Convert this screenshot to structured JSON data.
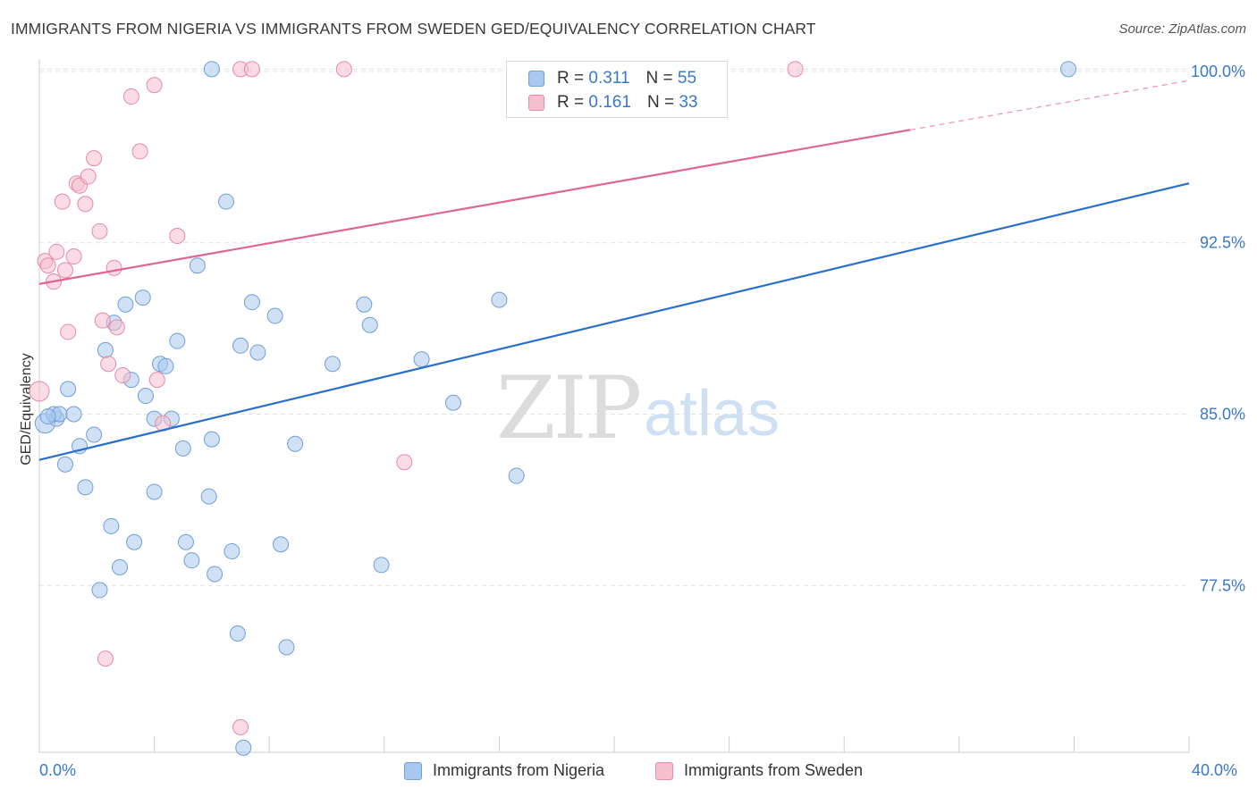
{
  "header": {
    "title": "IMMIGRANTS FROM NIGERIA VS IMMIGRANTS FROM SWEDEN GED/EQUIVALENCY CORRELATION CHART",
    "source": "Source: ZipAtlas.com"
  },
  "watermark": {
    "zip": "ZIP",
    "atlas": "atlas"
  },
  "legend_top": {
    "rows": [
      {
        "r_label": "R = ",
        "r_value": "0.311",
        "n_label": "N = ",
        "n_value": "55"
      },
      {
        "r_label": "R = ",
        "r_value": "0.161",
        "n_label": "N = ",
        "n_value": "33"
      }
    ]
  },
  "legend_bottom": {
    "items": [
      "Immigrants from Nigeria",
      "Immigrants from Sweden"
    ]
  },
  "colors": {
    "nigeria_fill": "#a9c8ef",
    "nigeria_stroke": "#6f9fd8",
    "nigeria_line": "#2a6fcb",
    "sweden_fill": "#f7bfd0",
    "sweden_stroke": "#e58aa8",
    "sweden_line": "#e0668f",
    "axis_label": "#3a78c9",
    "grid": "#e2e2e2"
  },
  "chart_data": {
    "type": "scatter",
    "title": "IMMIGRANTS FROM NIGERIA VS IMMIGRANTS FROM SWEDEN GED/EQUIVALENCY CORRELATION CHART",
    "xlabel": "",
    "ylabel": "GED/Equivalency",
    "xlim": [
      0,
      40
    ],
    "ylim": [
      70.2,
      100.7
    ],
    "x_tick_labels": [
      "0.0%",
      "40.0%"
    ],
    "y_ticks": [
      77.5,
      85.0,
      92.5,
      100.0
    ],
    "y_tick_labels": [
      "77.5%",
      "85.0%",
      "92.5%",
      "100.0%"
    ],
    "grid": true,
    "legend": "top-center",
    "series": [
      {
        "name": "Immigrants from Nigeria",
        "R": 0.311,
        "N": 55,
        "trend": {
          "x0": 0,
          "y0": 83.0,
          "x1": 40,
          "y1": 95.1,
          "dashed_from": null
        },
        "points": [
          [
            0.2,
            84.6
          ],
          [
            0.6,
            84.8
          ],
          [
            0.5,
            85.0
          ],
          [
            0.7,
            85.0
          ],
          [
            0.9,
            82.8
          ],
          [
            1.0,
            86.1
          ],
          [
            1.2,
            85.0
          ],
          [
            1.4,
            83.6
          ],
          [
            1.6,
            81.8
          ],
          [
            1.9,
            84.1
          ],
          [
            2.1,
            77.3
          ],
          [
            2.3,
            87.8
          ],
          [
            2.6,
            89.0
          ],
          [
            2.5,
            80.1
          ],
          [
            2.8,
            78.3
          ],
          [
            3.0,
            89.8
          ],
          [
            3.2,
            86.5
          ],
          [
            3.3,
            79.4
          ],
          [
            3.6,
            90.1
          ],
          [
            3.7,
            85.8
          ],
          [
            4.0,
            84.8
          ],
          [
            4.0,
            81.6
          ],
          [
            4.2,
            87.2
          ],
          [
            4.4,
            87.1
          ],
          [
            4.6,
            84.8
          ],
          [
            4.8,
            88.2
          ],
          [
            5.0,
            83.5
          ],
          [
            5.1,
            79.4
          ],
          [
            5.3,
            78.6
          ],
          [
            5.5,
            91.5
          ],
          [
            5.9,
            81.4
          ],
          [
            6.0,
            83.9
          ],
          [
            6.1,
            78.0
          ],
          [
            6.0,
            100.1
          ],
          [
            6.5,
            94.3
          ],
          [
            6.7,
            79.0
          ],
          [
            6.9,
            75.4
          ],
          [
            7.0,
            88.0
          ],
          [
            7.1,
            70.4
          ],
          [
            7.4,
            89.9
          ],
          [
            7.6,
            87.7
          ],
          [
            8.2,
            89.3
          ],
          [
            8.4,
            79.3
          ],
          [
            8.6,
            74.8
          ],
          [
            8.9,
            83.7
          ],
          [
            10.2,
            87.2
          ],
          [
            11.3,
            89.8
          ],
          [
            11.5,
            88.9
          ],
          [
            11.9,
            78.4
          ],
          [
            13.3,
            87.4
          ],
          [
            14.4,
            85.5
          ],
          [
            16.0,
            90.0
          ],
          [
            16.6,
            82.3
          ],
          [
            35.8,
            100.1
          ],
          [
            0.3,
            84.9
          ]
        ]
      },
      {
        "name": "Immigrants from Sweden",
        "R": 0.161,
        "N": 33,
        "trend": {
          "x0": 0,
          "y0": 90.7,
          "x1": 40,
          "y1": 99.6,
          "dashed_from": 30.3
        },
        "points": [
          [
            0.0,
            86.0
          ],
          [
            0.2,
            91.7
          ],
          [
            0.3,
            91.5
          ],
          [
            0.5,
            90.8
          ],
          [
            0.6,
            92.1
          ],
          [
            0.8,
            94.3
          ],
          [
            0.9,
            91.3
          ],
          [
            1.0,
            88.6
          ],
          [
            1.2,
            91.9
          ],
          [
            1.3,
            95.1
          ],
          [
            1.4,
            95.0
          ],
          [
            1.6,
            94.2
          ],
          [
            1.7,
            95.4
          ],
          [
            1.9,
            96.2
          ],
          [
            2.1,
            93.0
          ],
          [
            2.2,
            89.1
          ],
          [
            2.3,
            74.3
          ],
          [
            2.4,
            87.2
          ],
          [
            2.6,
            91.4
          ],
          [
            2.7,
            88.8
          ],
          [
            2.9,
            86.7
          ],
          [
            3.2,
            98.9
          ],
          [
            3.5,
            96.5
          ],
          [
            4.0,
            99.4
          ],
          [
            4.1,
            86.5
          ],
          [
            4.3,
            84.6
          ],
          [
            4.8,
            92.8
          ],
          [
            7.0,
            71.3
          ],
          [
            7.0,
            100.1
          ],
          [
            7.4,
            100.1
          ],
          [
            10.6,
            100.1
          ],
          [
            12.7,
            82.9
          ],
          [
            26.3,
            100.1
          ]
        ]
      }
    ]
  }
}
